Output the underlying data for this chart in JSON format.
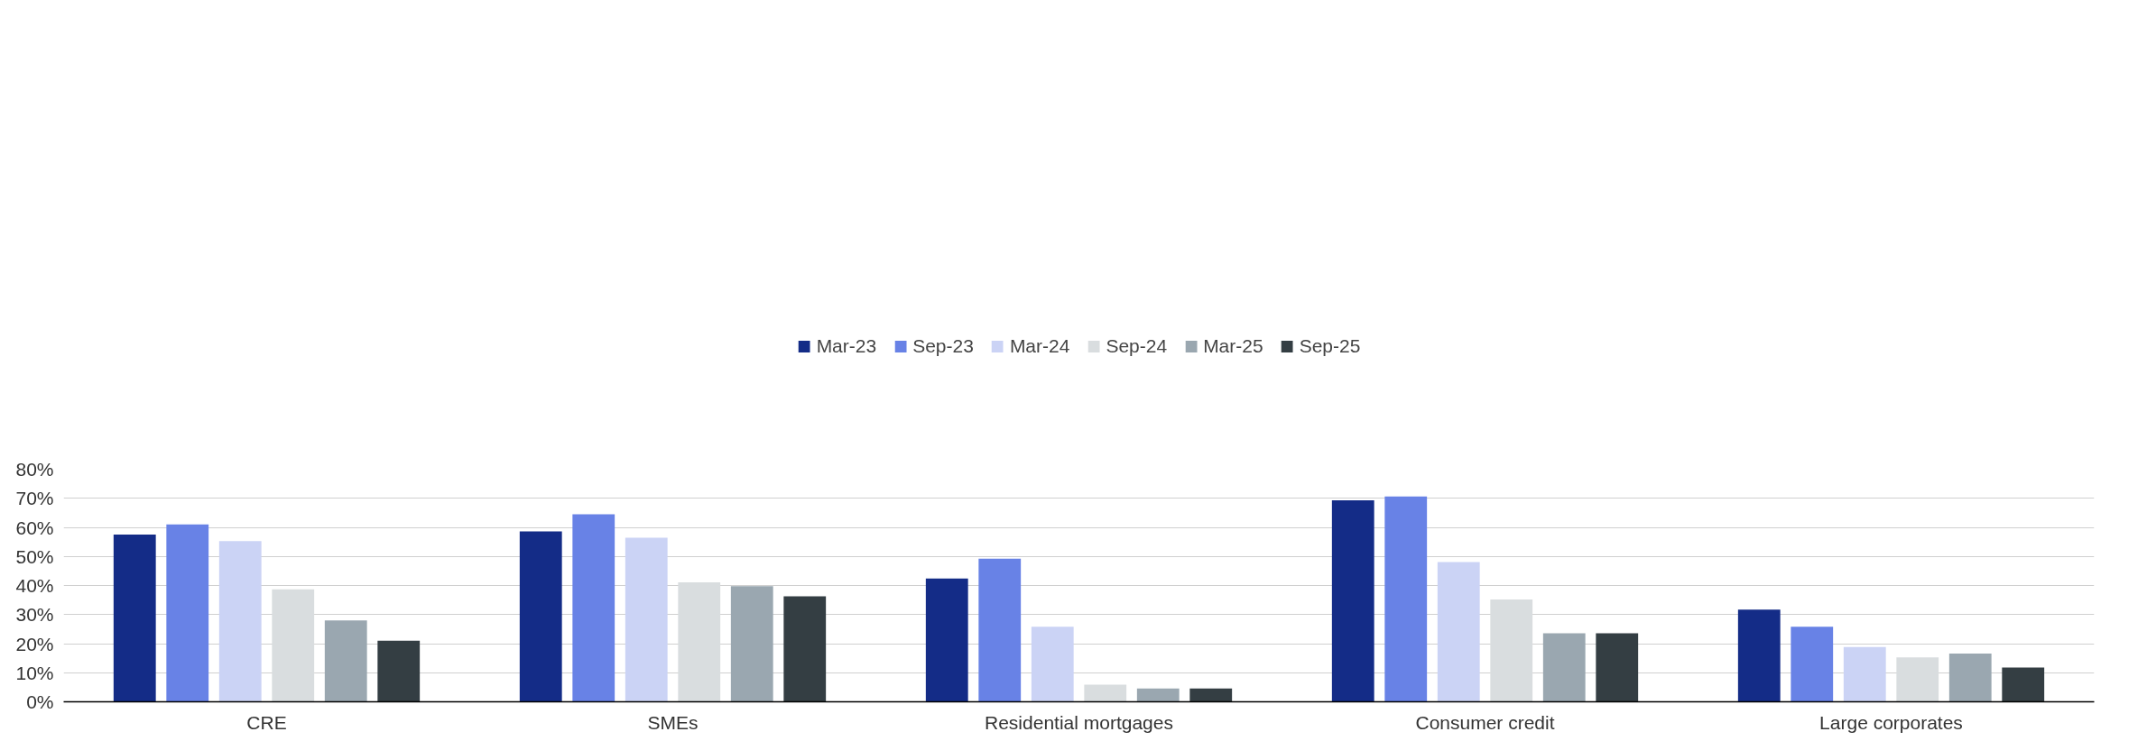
{
  "chart_data": {
    "type": "bar",
    "categories": [
      "CRE",
      "SMEs",
      "Residential mortgages",
      "Consumer credit",
      "Large corporates"
    ],
    "series": [
      {
        "name": "Mar-23",
        "color": "#142c87",
        "values": [
          57.5,
          58.6,
          42.4,
          69.3,
          31.7
        ]
      },
      {
        "name": "Sep-23",
        "color": "#6882e6",
        "values": [
          61.0,
          64.5,
          49.2,
          70.6,
          25.8
        ]
      },
      {
        "name": "Mar-24",
        "color": "#cbd3f5",
        "values": [
          55.3,
          56.4,
          25.8,
          48.1,
          18.8
        ]
      },
      {
        "name": "Sep-24",
        "color": "#d9dddf",
        "values": [
          38.7,
          41.1,
          5.9,
          35.2,
          15.3
        ]
      },
      {
        "name": "Mar-25",
        "color": "#9aa7b0",
        "values": [
          28.0,
          39.8,
          4.6,
          23.6,
          16.6
        ]
      },
      {
        "name": "Sep-25",
        "color": "#343e43",
        "values": [
          21.0,
          36.3,
          4.6,
          23.6,
          11.8
        ]
      }
    ],
    "ylim": [
      0,
      80
    ],
    "yticks": [
      {
        "value": 0,
        "label": "0%"
      },
      {
        "value": 10,
        "label": "10%"
      },
      {
        "value": 20,
        "label": "20%"
      },
      {
        "value": 30,
        "label": "30%"
      },
      {
        "value": 40,
        "label": "40%"
      },
      {
        "value": 50,
        "label": "50%"
      },
      {
        "value": 60,
        "label": "60%"
      },
      {
        "value": 70,
        "label": "70%"
      },
      {
        "value": 80,
        "label": "80%"
      }
    ],
    "grid": "y",
    "legend": "top"
  }
}
